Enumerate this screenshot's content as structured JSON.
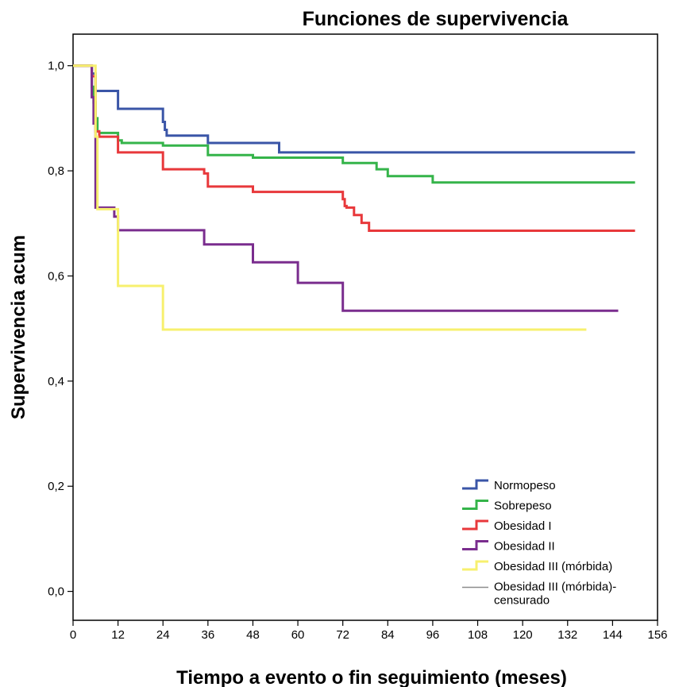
{
  "chart_data": {
    "type": "line",
    "step": true,
    "title": "Funciones de supervivencia",
    "xlabel": "Tiempo a evento o fin seguimiento (meses)",
    "ylabel": "Supervivencia acum",
    "xlim": [
      0,
      156
    ],
    "ylim": [
      -0.055,
      1.06
    ],
    "xticks": [
      0,
      12,
      24,
      36,
      48,
      60,
      72,
      84,
      96,
      108,
      120,
      132,
      144,
      156
    ],
    "yticks": [
      0.0,
      0.2,
      0.4,
      0.6,
      0.8,
      1.0
    ],
    "ytick_labels": [
      "0,0",
      "0,2",
      "0,4",
      "0,6",
      "0,8",
      "1,0"
    ],
    "grid": false,
    "legend_position": "bottom-right",
    "series": [
      {
        "name": "Normopeso",
        "color": "#3a55a7",
        "x": [
          0,
          5,
          6,
          12,
          24,
          24.5,
          25,
          36,
          55,
          150
        ],
        "y": [
          1.0,
          0.985,
          0.952,
          0.918,
          0.893,
          0.878,
          0.867,
          0.853,
          0.835,
          0.835
        ]
      },
      {
        "name": "Sobrepeso",
        "color": "#35b44a",
        "x": [
          0,
          5,
          5.5,
          6,
          6.5,
          7,
          12,
          13,
          24,
          36,
          48,
          72,
          81,
          84,
          96,
          150
        ],
        "y": [
          1.0,
          0.96,
          0.93,
          0.9,
          0.875,
          0.872,
          0.858,
          0.853,
          0.848,
          0.83,
          0.825,
          0.815,
          0.803,
          0.79,
          0.778,
          0.778
        ]
      },
      {
        "name": "Obesidad I",
        "color": "#e8383b",
        "x": [
          0,
          5,
          6,
          7,
          12,
          24,
          35,
          36,
          48,
          72,
          72.5,
          73,
          75,
          77,
          79,
          150
        ],
        "y": [
          1.0,
          0.98,
          0.875,
          0.865,
          0.835,
          0.803,
          0.795,
          0.77,
          0.76,
          0.746,
          0.733,
          0.73,
          0.716,
          0.701,
          0.686,
          0.686
        ]
      },
      {
        "name": "Obesidad II",
        "color": "#7a2d8e",
        "x": [
          0,
          5,
          5.5,
          6,
          11,
          12,
          35,
          48,
          60,
          72,
          145.5
        ],
        "y": [
          1.0,
          0.94,
          0.89,
          0.73,
          0.713,
          0.687,
          0.66,
          0.626,
          0.587,
          0.534,
          0.534
        ]
      },
      {
        "name": "Obesidad III (mórbida)",
        "color": "#f7f06e",
        "x": [
          0,
          6,
          6.5,
          12,
          24,
          137
        ],
        "y": [
          1.0,
          0.865,
          0.727,
          0.581,
          0.498,
          0.498
        ]
      }
    ],
    "legend": [
      {
        "label": "Normopeso",
        "color": "#3a55a7",
        "kind": "step"
      },
      {
        "label": "Sobrepeso",
        "color": "#35b44a",
        "kind": "step"
      },
      {
        "label": "Obesidad I",
        "color": "#e8383b",
        "kind": "step"
      },
      {
        "label": "Obesidad II",
        "color": "#7a2d8e",
        "kind": "step"
      },
      {
        "label": "Obesidad III (mórbida)",
        "color": "#f7f06e",
        "kind": "step"
      },
      {
        "label": "Obesidad III (mórbida)-",
        "label_line2": "censurado",
        "color": "#8c8c8c",
        "kind": "censor"
      }
    ]
  }
}
